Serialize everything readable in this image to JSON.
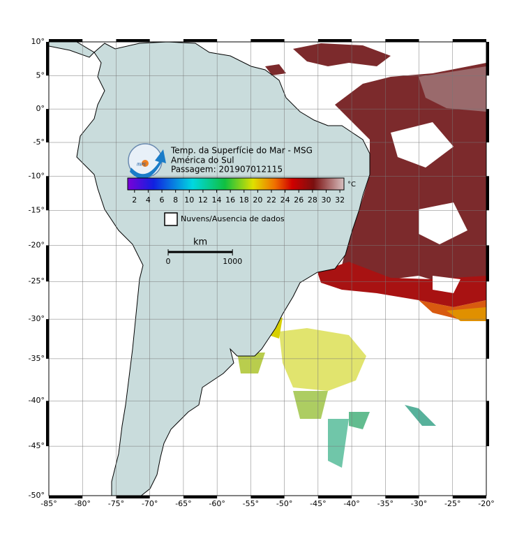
{
  "title": {
    "lines": [
      "Temp. da Superfície do Mar - MSG",
      "América do Sul",
      "Passagem: 201907012115"
    ]
  },
  "logo": "INPE",
  "colorbar": {
    "unit": "°C",
    "clim": [
      1,
      32.6
    ],
    "ticks": [
      2,
      4,
      6,
      8,
      10,
      12,
      14,
      16,
      18,
      20,
      22,
      24,
      26,
      28,
      30,
      32
    ]
  },
  "legend": {
    "label": "Nuvens/Ausencia de dados"
  },
  "scale_bar": {
    "unit": "km",
    "ticks": [
      0,
      1000
    ]
  },
  "map": {
    "projection": "mercator",
    "xlim": [
      -85,
      -20
    ],
    "ylim": [
      -50,
      10
    ],
    "xticks": [
      {
        "value": -85,
        "label": "-85°"
      },
      {
        "value": -80,
        "label": "-80°"
      },
      {
        "value": -75,
        "label": "-75°"
      },
      {
        "value": -70,
        "label": "-70°"
      },
      {
        "value": -65,
        "label": "-65°"
      },
      {
        "value": -60,
        "label": "-60°"
      },
      {
        "value": -55,
        "label": "-55°"
      },
      {
        "value": -50,
        "label": "-50°"
      },
      {
        "value": -45,
        "label": "-45°"
      },
      {
        "value": -40,
        "label": "-40°"
      },
      {
        "value": -35,
        "label": "-35°"
      },
      {
        "value": -30,
        "label": "-30°"
      },
      {
        "value": -25,
        "label": "-25°"
      },
      {
        "value": -20,
        "label": "-20°"
      }
    ],
    "yticks": [
      {
        "value": 10,
        "label": "10°"
      },
      {
        "value": 5,
        "label": "5°"
      },
      {
        "value": 0,
        "label": "0°"
      },
      {
        "value": -5,
        "label": "-5°"
      },
      {
        "value": -10,
        "label": "-10°"
      },
      {
        "value": -15,
        "label": "-15°"
      },
      {
        "value": -20,
        "label": "-20°"
      },
      {
        "value": -25,
        "label": "-25°"
      },
      {
        "value": -30,
        "label": "-30°"
      },
      {
        "value": -35,
        "label": "-35°"
      },
      {
        "value": -40,
        "label": "-40°"
      },
      {
        "value": -45,
        "label": "-45°"
      },
      {
        "value": -50,
        "label": "-50°"
      }
    ]
  }
}
